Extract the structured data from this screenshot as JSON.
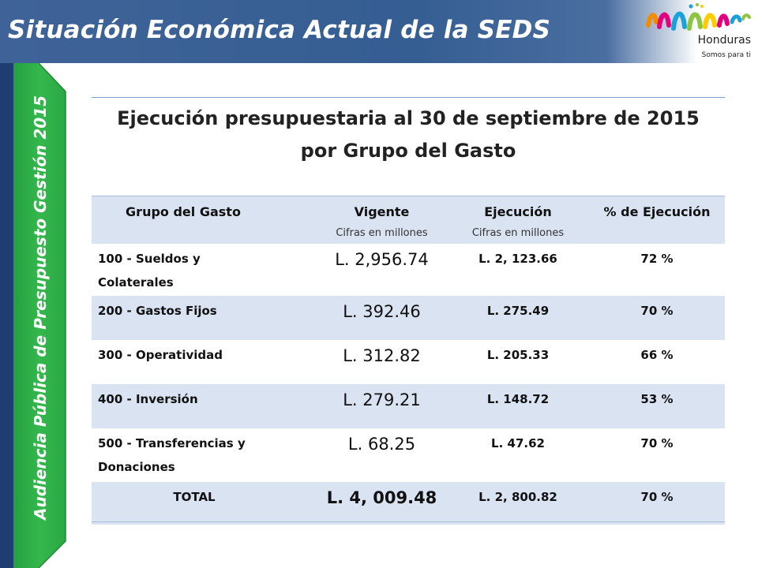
{
  "header": {
    "title": "Situación Económica Actual de la SEDS"
  },
  "logo": {
    "country": "Honduras",
    "slogan": "Somos para ti"
  },
  "side_tab": {
    "text": "Audiencia Pública de Presupuesto Gestión 2015"
  },
  "table": {
    "title_line1": "Ejecución presupuestaria al 30 de septiembre de 2015",
    "title_line2": "por Grupo del Gasto",
    "headers": {
      "grupo": "Grupo del Gasto",
      "vigente": "Vigente",
      "vigente_sub": "Cifras en millones",
      "ejecucion": "Ejecución",
      "ejecucion_sub": "Cifras en millones",
      "pct": "% de Ejecución"
    },
    "rows": [
      {
        "name_line1": "100 - Sueldos y",
        "name_line2": "Colaterales",
        "vigente": "L. 2,956.74",
        "ejecucion": "L. 2, 123.66",
        "pct": "72 %"
      },
      {
        "name_line1": "200 - Gastos Fijos",
        "name_line2": "",
        "vigente": "L. 392.46",
        "ejecucion": "L. 275.49",
        "pct": "70 %"
      },
      {
        "name_line1": "300 - Operatividad",
        "name_line2": "",
        "vigente": "L. 312.82",
        "ejecucion": "L. 205.33",
        "pct": "66 %"
      },
      {
        "name_line1": "400 - Inversión",
        "name_line2": "",
        "vigente": "L. 279.21",
        "ejecucion": "L. 148.72",
        "pct": "53 %"
      },
      {
        "name_line1": "500 - Transferencias y",
        "name_line2": "Donaciones",
        "vigente": "L. 68.25",
        "ejecucion": "L. 47.62",
        "pct": "70 %"
      }
    ],
    "total": {
      "label": "TOTAL",
      "vigente": "L. 4, 009.48",
      "ejecucion": "L. 2, 800.82",
      "pct": "70 %"
    }
  },
  "colors": {
    "header_blue": "#355e93",
    "side_green": "#2fb24a",
    "side_navy": "#1f3d73",
    "row_band": "#dae3f1"
  }
}
